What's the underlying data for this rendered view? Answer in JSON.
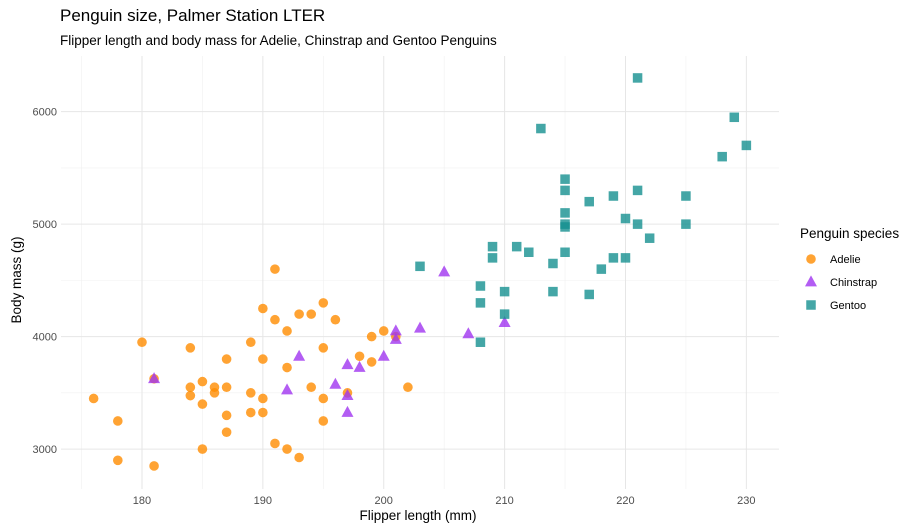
{
  "chart_data": {
    "type": "scatter",
    "title": "Penguin size, Palmer Station LTER",
    "subtitle": "Flipper length and body mass for Adelie, Chinstrap and Gentoo Penguins",
    "xlabel": "Flipper length (mm)",
    "ylabel": "Body mass (g)",
    "xlim": [
      173.3,
      232.7
    ],
    "ylim": [
      2645,
      6495
    ],
    "xticks": [
      180,
      190,
      200,
      210,
      220,
      230
    ],
    "yticks": [
      3000,
      4000,
      5000,
      6000
    ],
    "grid": true,
    "legend": {
      "title": "Penguin species",
      "position": "right"
    },
    "series": [
      {
        "name": "Adelie",
        "marker": "circle",
        "color": "#ff8c00",
        "points": [
          [
            176,
            3450
          ],
          [
            178,
            3250
          ],
          [
            178,
            2900
          ],
          [
            180,
            3950
          ],
          [
            181,
            3625
          ],
          [
            181,
            2850
          ],
          [
            184,
            3900
          ],
          [
            184,
            3550
          ],
          [
            184,
            3475
          ],
          [
            185,
            3600
          ],
          [
            185,
            3400
          ],
          [
            185,
            3000
          ],
          [
            186,
            3550
          ],
          [
            186,
            3500
          ],
          [
            187,
            3800
          ],
          [
            187,
            3550
          ],
          [
            187,
            3300
          ],
          [
            187,
            3150
          ],
          [
            189,
            3950
          ],
          [
            189,
            3500
          ],
          [
            189,
            3325
          ],
          [
            190,
            4250
          ],
          [
            190,
            3800
          ],
          [
            190,
            3450
          ],
          [
            190,
            3325
          ],
          [
            191,
            4600
          ],
          [
            191,
            4150
          ],
          [
            191,
            3050
          ],
          [
            192,
            4050
          ],
          [
            192,
            3725
          ],
          [
            192,
            3000
          ],
          [
            193,
            4200
          ],
          [
            193,
            2925
          ],
          [
            194,
            4200
          ],
          [
            194,
            3550
          ],
          [
            195,
            4300
          ],
          [
            195,
            3900
          ],
          [
            195,
            3450
          ],
          [
            195,
            3250
          ],
          [
            196,
            4150
          ],
          [
            197,
            3500
          ],
          [
            198,
            3825
          ],
          [
            199,
            4000
          ],
          [
            199,
            3775
          ],
          [
            200,
            4050
          ],
          [
            201,
            4000
          ],
          [
            202,
            3550
          ]
        ]
      },
      {
        "name": "Chinstrap",
        "marker": "triangle",
        "color": "#a034f0",
        "points": [
          [
            181,
            3625
          ],
          [
            192,
            3525
          ],
          [
            193,
            3825
          ],
          [
            196,
            3575
          ],
          [
            197,
            3750
          ],
          [
            197,
            3475
          ],
          [
            197,
            3325
          ],
          [
            198,
            3725
          ],
          [
            200,
            3825
          ],
          [
            201,
            4050
          ],
          [
            201,
            3975
          ],
          [
            203,
            4075
          ],
          [
            205,
            4575
          ],
          [
            207,
            4025
          ],
          [
            210,
            4125
          ]
        ]
      },
      {
        "name": "Gentoo",
        "marker": "square",
        "color": "#159090",
        "points": [
          [
            203,
            4625
          ],
          [
            208,
            4450
          ],
          [
            208,
            4300
          ],
          [
            208,
            3950
          ],
          [
            209,
            4800
          ],
          [
            209,
            4700
          ],
          [
            210,
            4400
          ],
          [
            210,
            4200
          ],
          [
            211,
            4800
          ],
          [
            212,
            4750
          ],
          [
            213,
            5850
          ],
          [
            214,
            4650
          ],
          [
            214,
            4400
          ],
          [
            215,
            5400
          ],
          [
            215,
            5300
          ],
          [
            215,
            5100
          ],
          [
            215,
            5000
          ],
          [
            215,
            4975
          ],
          [
            215,
            4750
          ],
          [
            217,
            5200
          ],
          [
            217,
            4375
          ],
          [
            218,
            4600
          ],
          [
            219,
            5250
          ],
          [
            219,
            4700
          ],
          [
            220,
            5050
          ],
          [
            220,
            4700
          ],
          [
            221,
            6300
          ],
          [
            221,
            5300
          ],
          [
            221,
            5000
          ],
          [
            222,
            4875
          ],
          [
            225,
            5250
          ],
          [
            225,
            5000
          ],
          [
            228,
            5600
          ],
          [
            229,
            5950
          ],
          [
            230,
            5700
          ]
        ]
      }
    ]
  }
}
